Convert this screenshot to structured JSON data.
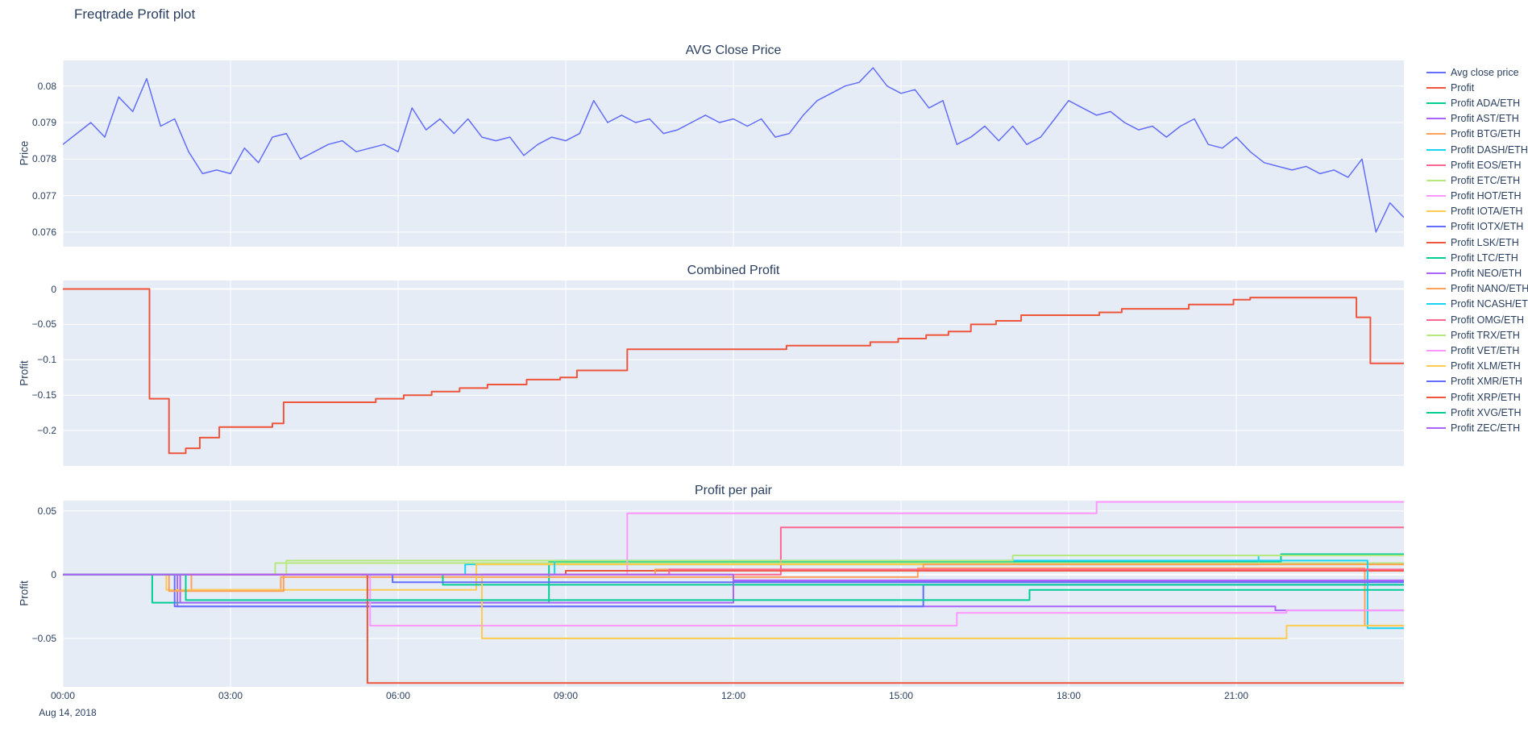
{
  "page_title": "Freqtrade Profit plot",
  "colors": {
    "page_bg": "#ffffff",
    "panel_bg": "#e5ecf6",
    "grid": "#ffffff",
    "text": "#2a3f5f"
  },
  "x_axis": {
    "range": [
      0,
      24
    ],
    "tick_hours": [
      0,
      3,
      6,
      9,
      12,
      15,
      18,
      21
    ],
    "tick_labels": [
      "00:00",
      "03:00",
      "06:00",
      "09:00",
      "12:00",
      "15:00",
      "18:00",
      "21:00"
    ],
    "date_label": "Aug 14, 2018"
  },
  "chart_data": [
    {
      "type": "line",
      "title": "AVG Close Price",
      "ylabel": "Price",
      "ylim": [
        0.0756,
        0.0807
      ],
      "yticks": [
        {
          "v": 0.076,
          "label": "0.076"
        },
        {
          "v": 0.077,
          "label": "0.077"
        },
        {
          "v": 0.078,
          "label": "0.078"
        },
        {
          "v": 0.079,
          "label": "0.079"
        },
        {
          "v": 0.08,
          "label": "0.08"
        }
      ],
      "series": [
        {
          "name": "Avg close price",
          "color": "#636efa",
          "step": false,
          "width": 1.5,
          "x0": 0,
          "dx": 0.25,
          "y": [
            0.0784,
            0.0787,
            0.079,
            0.0786,
            0.0797,
            0.0793,
            0.0802,
            0.0789,
            0.0791,
            0.0782,
            0.0776,
            0.0777,
            0.0776,
            0.0783,
            0.0779,
            0.0786,
            0.0787,
            0.078,
            0.0782,
            0.0784,
            0.0785,
            0.0782,
            0.0783,
            0.0784,
            0.0782,
            0.0794,
            0.0788,
            0.0791,
            0.0787,
            0.0791,
            0.0786,
            0.0785,
            0.0786,
            0.0781,
            0.0784,
            0.0786,
            0.0785,
            0.0787,
            0.0796,
            0.079,
            0.0792,
            0.079,
            0.0791,
            0.0787,
            0.0788,
            0.079,
            0.0792,
            0.079,
            0.0791,
            0.0789,
            0.0791,
            0.0786,
            0.0787,
            0.0792,
            0.0796,
            0.0798,
            0.08,
            0.0801,
            0.0805,
            0.08,
            0.0798,
            0.0799,
            0.0794,
            0.0796,
            0.0784,
            0.0786,
            0.0789,
            0.0785,
            0.0789,
            0.0784,
            0.0786,
            0.0791,
            0.0796,
            0.0794,
            0.0792,
            0.0793,
            0.079,
            0.0788,
            0.0789,
            0.0786,
            0.0789,
            0.0791,
            0.0784,
            0.0783,
            0.0786,
            0.0782,
            0.0779,
            0.0778,
            0.0777,
            0.0778,
            0.0776,
            0.0777,
            0.0775,
            0.078,
            0.076,
            0.0768,
            0.0764
          ]
        }
      ]
    },
    {
      "type": "line",
      "title": "Combined Profit",
      "ylabel": "Profit",
      "ylim": [
        -0.25,
        0.012
      ],
      "yticks": [
        {
          "v": 0,
          "label": "0"
        },
        {
          "v": -0.05,
          "label": "−0.05"
        },
        {
          "v": -0.1,
          "label": "−0.1"
        },
        {
          "v": -0.15,
          "label": "−0.15"
        },
        {
          "v": -0.2,
          "label": "−0.2"
        }
      ],
      "series": [
        {
          "name": "Profit",
          "color": "#ef553b",
          "step": true,
          "x": [
            0,
            1.55,
            1.9,
            2.2,
            2.45,
            2.8,
            3.75,
            3.95,
            5.6,
            6.1,
            6.6,
            7.1,
            7.6,
            8.3,
            8.9,
            9.2,
            10.1,
            12.95,
            14.45,
            14.95,
            15.45,
            15.85,
            16.25,
            16.7,
            17.15,
            18.55,
            18.95,
            20.15,
            20.95,
            21.25,
            23.15,
            23.4,
            24
          ],
          "y": [
            0,
            -0.155,
            -0.232,
            -0.225,
            -0.21,
            -0.195,
            -0.19,
            -0.16,
            -0.155,
            -0.15,
            -0.145,
            -0.14,
            -0.135,
            -0.128,
            -0.125,
            -0.115,
            -0.085,
            -0.08,
            -0.075,
            -0.07,
            -0.065,
            -0.06,
            -0.05,
            -0.045,
            -0.037,
            -0.033,
            -0.028,
            -0.022,
            -0.015,
            -0.012,
            -0.04,
            -0.105,
            -0.105
          ]
        }
      ]
    },
    {
      "type": "line",
      "title": "Profit per pair",
      "ylabel": "Profit",
      "ylim": [
        -0.088,
        0.058
      ],
      "yticks": [
        {
          "v": 0.05,
          "label": "0.05"
        },
        {
          "v": 0,
          "label": "0"
        },
        {
          "v": -0.05,
          "label": "−0.05"
        }
      ],
      "series": [
        {
          "name": "Profit ADA/ETH",
          "color": "#00cc96",
          "step": true,
          "x": [
            0,
            1.6,
            8.7,
            21.8,
            24
          ],
          "y": [
            0,
            -0.022,
            0.01,
            0.016,
            0.016
          ]
        },
        {
          "name": "Profit AST/ETH",
          "color": "#ab63fa",
          "step": true,
          "x": [
            0,
            2.05,
            21.7,
            24
          ],
          "y": [
            0,
            -0.025,
            -0.028,
            -0.028
          ]
        },
        {
          "name": "Profit BTG/ETH",
          "color": "#ffa15a",
          "step": true,
          "x": [
            0,
            2.3,
            3.9,
            15.3,
            23.3,
            24
          ],
          "y": [
            0,
            -0.012,
            -0.002,
            0.005,
            -0.04,
            -0.04
          ]
        },
        {
          "name": "Profit DASH/ETH",
          "color": "#19d3f3",
          "step": true,
          "x": [
            0,
            7.2,
            21.4,
            24
          ],
          "y": [
            0,
            0.008,
            0.015,
            0.015
          ]
        },
        {
          "name": "Profit EOS/ETH",
          "color": "#ff6692",
          "step": true,
          "x": [
            0,
            12.85,
            24
          ],
          "y": [
            0,
            0.037,
            0.037
          ]
        },
        {
          "name": "Profit ETC/ETH",
          "color": "#b6e880",
          "step": true,
          "x": [
            0,
            3.8,
            24
          ],
          "y": [
            0,
            0.009,
            0.009
          ]
        },
        {
          "name": "Profit HOT/ETH",
          "color": "#ff97ff",
          "step": true,
          "x": [
            0,
            10.1,
            18.5,
            24
          ],
          "y": [
            0,
            0.048,
            0.057,
            0.057
          ]
        },
        {
          "name": "Profit IOTA/ETH",
          "color": "#fecb52",
          "step": true,
          "x": [
            0,
            1.85,
            7.4,
            24
          ],
          "y": [
            0,
            -0.012,
            0.008,
            0.008
          ]
        },
        {
          "name": "Profit IOTX/ETH",
          "color": "#636efa",
          "step": true,
          "x": [
            0,
            2.0,
            15.4,
            24
          ],
          "y": [
            0,
            -0.025,
            -0.008,
            -0.008
          ]
        },
        {
          "name": "Profit LSK/ETH",
          "color": "#ef553b",
          "step": true,
          "x": [
            0,
            9.0,
            24
          ],
          "y": [
            0,
            0.003,
            0.003
          ]
        },
        {
          "name": "Profit LTC/ETH",
          "color": "#00cc96",
          "step": true,
          "x": [
            0,
            6.8,
            24
          ],
          "y": [
            0,
            -0.008,
            -0.008
          ]
        },
        {
          "name": "Profit NEO/ETH",
          "color": "#ab63fa",
          "step": true,
          "x": [
            0,
            2.1,
            12.0,
            24
          ],
          "y": [
            0,
            -0.022,
            -0.005,
            -0.005
          ]
        },
        {
          "name": "Profit NANO/ETH",
          "color": "#ffa15a",
          "step": true,
          "x": [
            0,
            1.9,
            3.95,
            10.6,
            15.4,
            24
          ],
          "y": [
            0,
            -0.013,
            0,
            0.004,
            0.008,
            0.008
          ]
        },
        {
          "name": "Profit NCASH/ETH",
          "color": "#19d3f3",
          "step": true,
          "x": [
            0,
            8.8,
            23.35,
            24
          ],
          "y": [
            0,
            0.011,
            -0.042,
            -0.042
          ]
        },
        {
          "name": "Profit OMG/ETH",
          "color": "#ff6692",
          "step": true,
          "x": [
            0,
            10.85,
            24
          ],
          "y": [
            0,
            0.004,
            0.004
          ]
        },
        {
          "name": "Profit TRX/ETH",
          "color": "#b6e880",
          "step": true,
          "x": [
            0,
            4.0,
            17.0,
            24
          ],
          "y": [
            0,
            0.011,
            0.015,
            0.015
          ]
        },
        {
          "name": "Profit VET/ETH",
          "color": "#ff97ff",
          "step": true,
          "x": [
            0,
            5.5,
            16.0,
            21.9,
            24
          ],
          "y": [
            0,
            -0.04,
            -0.03,
            -0.028,
            -0.028
          ]
        },
        {
          "name": "Profit XLM/ETH",
          "color": "#fecb52",
          "step": true,
          "x": [
            0,
            7.5,
            21.9,
            24
          ],
          "y": [
            0,
            -0.05,
            -0.04,
            -0.04
          ]
        },
        {
          "name": "Profit XMR/ETH",
          "color": "#636efa",
          "step": true,
          "x": [
            0,
            5.9,
            24
          ],
          "y": [
            0,
            -0.006,
            -0.006
          ]
        },
        {
          "name": "Profit XRP/ETH",
          "color": "#ef553b",
          "step": true,
          "x": [
            0,
            5.45,
            24
          ],
          "y": [
            0,
            -0.085,
            -0.085
          ]
        },
        {
          "name": "Profit XVG/ETH",
          "color": "#00cc96",
          "step": true,
          "x": [
            0,
            2.2,
            17.3,
            24
          ],
          "y": [
            0,
            -0.02,
            -0.012,
            -0.012
          ]
        },
        {
          "name": "Profit ZEC/ETH",
          "color": "#ab63fa",
          "step": true,
          "x": [
            0,
            12.0,
            24
          ],
          "y": [
            0,
            -0.0045,
            -0.0045
          ]
        }
      ]
    }
  ],
  "legend": {
    "items": [
      {
        "label": "Avg close price",
        "color": "#636efa"
      },
      {
        "label": "Profit",
        "color": "#ef553b"
      },
      {
        "label": "Profit ADA/ETH",
        "color": "#00cc96"
      },
      {
        "label": "Profit AST/ETH",
        "color": "#ab63fa"
      },
      {
        "label": "Profit BTG/ETH",
        "color": "#ffa15a"
      },
      {
        "label": "Profit DASH/ETH",
        "color": "#19d3f3"
      },
      {
        "label": "Profit EOS/ETH",
        "color": "#ff6692"
      },
      {
        "label": "Profit ETC/ETH",
        "color": "#b6e880"
      },
      {
        "label": "Profit HOT/ETH",
        "color": "#ff97ff"
      },
      {
        "label": "Profit IOTA/ETH",
        "color": "#fecb52"
      },
      {
        "label": "Profit IOTX/ETH",
        "color": "#636efa"
      },
      {
        "label": "Profit LSK/ETH",
        "color": "#ef553b"
      },
      {
        "label": "Profit LTC/ETH",
        "color": "#00cc96"
      },
      {
        "label": "Profit NEO/ETH",
        "color": "#ab63fa"
      },
      {
        "label": "Profit NANO/ETH",
        "color": "#ffa15a"
      },
      {
        "label": "Profit NCASH/ETH",
        "color": "#19d3f3"
      },
      {
        "label": "Profit OMG/ETH",
        "color": "#ff6692"
      },
      {
        "label": "Profit TRX/ETH",
        "color": "#b6e880"
      },
      {
        "label": "Profit VET/ETH",
        "color": "#ff97ff"
      },
      {
        "label": "Profit XLM/ETH",
        "color": "#fecb52"
      },
      {
        "label": "Profit XMR/ETH",
        "color": "#636efa"
      },
      {
        "label": "Profit XRP/ETH",
        "color": "#ef553b"
      },
      {
        "label": "Profit XVG/ETH",
        "color": "#00cc96"
      },
      {
        "label": "Profit ZEC/ETH",
        "color": "#ab63fa"
      }
    ]
  }
}
